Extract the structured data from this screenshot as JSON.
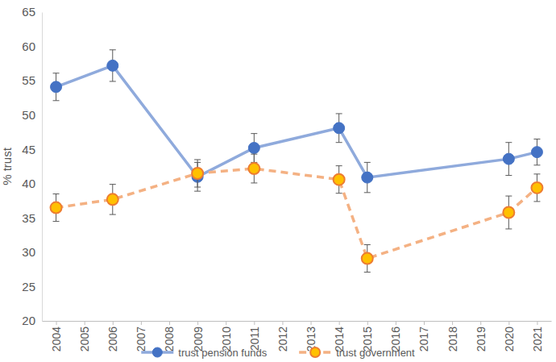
{
  "chart_data": {
    "type": "line",
    "y_label": "% trust",
    "x": [
      2004,
      2006,
      2009,
      2011,
      2014,
      2015,
      2020,
      2021
    ],
    "xlim": [
      2003.5,
      2021.5
    ],
    "xticks": [
      2004,
      2005,
      2006,
      2007,
      2008,
      2009,
      2010,
      2011,
      2012,
      2013,
      2014,
      2015,
      2016,
      2017,
      2018,
      2019,
      2020,
      2021
    ],
    "ylim": [
      20,
      65
    ],
    "yticks": [
      20,
      25,
      30,
      35,
      40,
      45,
      50,
      55,
      60,
      65
    ],
    "grid": false,
    "legend": "bottom",
    "series": [
      {
        "name": "trust pension funds",
        "color": "#4472c4",
        "marker": "circle",
        "line_style": "solid",
        "values": [
          54.1,
          57.2,
          41.0,
          45.2,
          48.1,
          40.9,
          43.6,
          44.6
        ],
        "errors": [
          2.0,
          2.3,
          2.1,
          2.1,
          2.1,
          2.2,
          2.4,
          1.9
        ]
      },
      {
        "name": "trust government",
        "color": "#ed7d31",
        "marker": "circle",
        "line_style": "dashed",
        "values": [
          36.5,
          37.7,
          41.5,
          42.2,
          40.6,
          29.1,
          35.8,
          39.4
        ],
        "errors": [
          2.0,
          2.2,
          2.0,
          2.1,
          2.0,
          2.0,
          2.4,
          2.0
        ]
      }
    ]
  }
}
